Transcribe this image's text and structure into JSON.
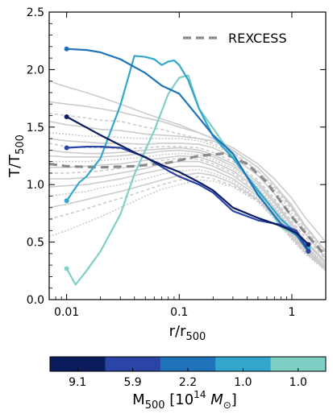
{
  "chart_data": {
    "type": "line",
    "xscale": "log",
    "xlim": [
      0.007,
      2.0
    ],
    "ylim": [
      0.0,
      2.5
    ],
    "grid": false,
    "xlabel": {
      "main": "r/r",
      "sub": "500"
    },
    "ylabel": {
      "main": "T/T",
      "sub": "500"
    },
    "x_ticks": [
      {
        "value": 0.01,
        "label": "0.01"
      },
      {
        "value": 0.1,
        "label": "0.1"
      },
      {
        "value": 1,
        "label": "1"
      }
    ],
    "y_ticks": [
      {
        "value": 0.0,
        "label": "0.0"
      },
      {
        "value": 0.5,
        "label": "0.5"
      },
      {
        "value": 1.0,
        "label": "1.0"
      },
      {
        "value": 1.5,
        "label": "1.5"
      },
      {
        "value": 2.0,
        "label": "2.0"
      },
      {
        "value": 2.5,
        "label": "2.5"
      }
    ],
    "legend": {
      "placement": "top-right",
      "entries": [
        {
          "label": "REXCESS",
          "style": "dashed",
          "color": "#8a8a8a"
        }
      ]
    },
    "reference": {
      "name": "REXCESS",
      "color": "#8a8a8a",
      "x": [
        0.007,
        0.01,
        0.02,
        0.04,
        0.08,
        0.15,
        0.25,
        0.4,
        0.6,
        0.8,
        1.0,
        1.4,
        2.0
      ],
      "y": [
        1.18,
        1.16,
        1.15,
        1.16,
        1.19,
        1.25,
        1.27,
        1.18,
        1.02,
        0.85,
        0.72,
        0.55,
        0.38
      ]
    },
    "background_profiles": {
      "color": "#cccccc",
      "x": [
        0.007,
        0.01,
        0.015,
        0.02,
        0.03,
        0.05,
        0.07,
        0.1,
        0.15,
        0.2,
        0.3,
        0.5,
        0.7,
        1.0,
        1.3,
        2.0
      ],
      "series": [
        [
          1.9,
          1.85,
          1.8,
          1.76,
          1.7,
          1.62,
          1.57,
          1.52,
          1.45,
          1.4,
          1.32,
          1.18,
          1.05,
          0.88,
          0.72,
          0.5
        ],
        [
          1.72,
          1.7,
          1.68,
          1.66,
          1.63,
          1.58,
          1.55,
          1.5,
          1.45,
          1.4,
          1.3,
          1.15,
          1.0,
          0.82,
          0.65,
          0.42
        ],
        [
          1.62,
          1.6,
          1.58,
          1.56,
          1.55,
          1.5,
          1.48,
          1.44,
          1.4,
          1.36,
          1.28,
          1.12,
          0.98,
          0.78,
          0.62,
          0.4
        ],
        [
          1.55,
          1.52,
          1.5,
          1.48,
          1.47,
          1.44,
          1.43,
          1.42,
          1.4,
          1.38,
          1.3,
          1.15,
          1.0,
          0.8,
          0.64,
          0.42
        ],
        [
          1.45,
          1.44,
          1.42,
          1.42,
          1.41,
          1.4,
          1.4,
          1.4,
          1.38,
          1.34,
          1.27,
          1.12,
          0.96,
          0.75,
          0.6,
          0.38
        ],
        [
          1.4,
          1.38,
          1.37,
          1.36,
          1.36,
          1.35,
          1.36,
          1.36,
          1.35,
          1.32,
          1.24,
          1.08,
          0.92,
          0.72,
          0.58,
          0.36
        ],
        [
          1.36,
          1.33,
          1.32,
          1.32,
          1.31,
          1.32,
          1.33,
          1.33,
          1.32,
          1.28,
          1.2,
          1.04,
          0.88,
          0.68,
          0.55,
          0.35
        ],
        [
          1.3,
          1.28,
          1.27,
          1.27,
          1.28,
          1.3,
          1.31,
          1.32,
          1.3,
          1.26,
          1.18,
          1.02,
          0.86,
          0.66,
          0.52,
          0.33
        ],
        [
          1.25,
          1.24,
          1.24,
          1.24,
          1.25,
          1.27,
          1.29,
          1.3,
          1.28,
          1.24,
          1.16,
          1.0,
          0.84,
          0.64,
          0.5,
          0.32
        ],
        [
          1.2,
          1.2,
          1.2,
          1.21,
          1.22,
          1.24,
          1.26,
          1.27,
          1.26,
          1.22,
          1.14,
          0.98,
          0.82,
          0.62,
          0.48,
          0.3
        ],
        [
          1.15,
          1.15,
          1.16,
          1.17,
          1.18,
          1.21,
          1.23,
          1.25,
          1.24,
          1.2,
          1.12,
          0.96,
          0.8,
          0.6,
          0.47,
          0.3
        ],
        [
          1.1,
          1.1,
          1.11,
          1.12,
          1.14,
          1.18,
          1.21,
          1.23,
          1.22,
          1.18,
          1.1,
          0.94,
          0.78,
          0.58,
          0.46,
          0.28
        ],
        [
          1.05,
          1.05,
          1.06,
          1.07,
          1.1,
          1.14,
          1.18,
          1.2,
          1.2,
          1.16,
          1.08,
          0.92,
          0.76,
          0.57,
          0.45,
          0.28
        ],
        [
          0.98,
          0.99,
          1.0,
          1.02,
          1.05,
          1.1,
          1.13,
          1.16,
          1.16,
          1.13,
          1.05,
          0.9,
          0.75,
          0.56,
          0.44,
          0.27
        ],
        [
          0.9,
          0.92,
          0.94,
          0.97,
          1.0,
          1.05,
          1.09,
          1.12,
          1.13,
          1.1,
          1.03,
          0.88,
          0.73,
          0.55,
          0.43,
          0.27
        ],
        [
          0.8,
          0.83,
          0.87,
          0.9,
          0.94,
          1.0,
          1.04,
          1.08,
          1.1,
          1.08,
          1.01,
          0.87,
          0.72,
          0.54,
          0.42,
          0.26
        ],
        [
          0.7,
          0.74,
          0.79,
          0.83,
          0.88,
          0.95,
          1.0,
          1.04,
          1.07,
          1.05,
          0.99,
          0.86,
          0.71,
          0.53,
          0.41,
          0.26
        ],
        [
          0.55,
          0.6,
          0.67,
          0.72,
          0.8,
          0.9,
          0.96,
          1.0,
          1.04,
          1.03,
          0.98,
          0.85,
          0.7,
          0.52,
          0.4,
          0.25
        ]
      ]
    },
    "series": [
      {
        "mass": "9.1",
        "color": "#0c1d5e",
        "x": [
          0.01,
          0.02,
          0.04,
          0.07,
          0.1,
          0.15,
          0.2,
          0.3,
          0.5,
          0.8,
          1.1,
          1.4
        ],
        "y": [
          1.59,
          1.43,
          1.28,
          1.17,
          1.11,
          1.02,
          0.95,
          0.8,
          0.71,
          0.64,
          0.58,
          0.48
        ]
      },
      {
        "mass": "5.9",
        "color": "#2a45a6",
        "x": [
          0.01,
          0.015,
          0.02,
          0.03,
          0.05,
          0.08,
          0.1,
          0.15,
          0.2,
          0.3,
          0.5,
          0.8,
          1.1,
          1.4
        ],
        "y": [
          1.32,
          1.33,
          1.33,
          1.32,
          1.24,
          1.12,
          1.07,
          1.0,
          0.93,
          0.77,
          0.69,
          0.65,
          0.6,
          0.42
        ]
      },
      {
        "mass": "2.2",
        "color": "#1f73b8",
        "x": [
          0.01,
          0.015,
          0.02,
          0.03,
          0.05,
          0.07,
          0.1,
          0.15,
          0.2,
          0.3,
          0.5,
          0.8,
          1.1,
          1.4
        ],
        "y": [
          2.18,
          2.17,
          2.15,
          2.09,
          1.97,
          1.86,
          1.79,
          1.58,
          1.43,
          1.27,
          0.91,
          0.66,
          0.56,
          0.42
        ]
      },
      {
        "mass": "1.0",
        "color": "#33a6cc",
        "x": [
          0.01,
          0.013,
          0.015,
          0.02,
          0.03,
          0.04,
          0.05,
          0.06,
          0.07,
          0.08,
          0.09,
          0.1,
          0.12,
          0.15,
          0.2,
          0.3,
          0.5,
          0.8,
          1.1,
          1.4
        ],
        "y": [
          0.86,
          1.02,
          1.07,
          1.23,
          1.69,
          2.12,
          2.11,
          2.09,
          2.04,
          2.07,
          2.08,
          2.04,
          1.91,
          1.66,
          1.42,
          1.23,
          0.95,
          0.7,
          0.58,
          0.45
        ]
      },
      {
        "mass": "1.0",
        "color": "#7fd0c4",
        "x": [
          0.01,
          0.012,
          0.015,
          0.02,
          0.03,
          0.04,
          0.06,
          0.08,
          0.1,
          0.12,
          0.15,
          0.2,
          0.3,
          0.5,
          0.8,
          1.1,
          1.4
        ],
        "y": [
          0.27,
          0.13,
          0.25,
          0.42,
          0.74,
          1.09,
          1.47,
          1.79,
          1.93,
          1.95,
          1.66,
          1.49,
          1.24,
          0.93,
          0.63,
          0.56,
          0.43
        ]
      }
    ],
    "colorbar": {
      "label": {
        "main": "M",
        "sub": "500",
        "rest": " [10",
        "sup": "14",
        "unit": " M",
        "unit_sub": "⊙",
        "close": "]"
      },
      "ticks": [
        "9.1",
        "5.9",
        "2.2",
        "1.0",
        "1.0"
      ],
      "colors": [
        "#0c1d5e",
        "#2a45a6",
        "#1f73b8",
        "#33a6cc",
        "#7fd0c4"
      ]
    }
  }
}
